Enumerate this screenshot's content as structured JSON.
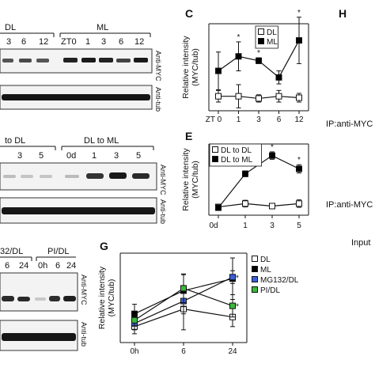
{
  "panel_letters": {
    "c": "C",
    "e": "E",
    "g": "G",
    "h": "H"
  },
  "blot_top": {
    "groups": [
      "DL",
      "ML"
    ],
    "lanes": [
      "3",
      "6",
      "12",
      "ZT0",
      "1",
      "3",
      "6",
      "12"
    ],
    "labels": [
      "Anti-MYC",
      "Anti-tub"
    ]
  },
  "blot_mid": {
    "groups": [
      "to DL",
      "DL to ML"
    ],
    "lanes": [
      "3",
      "5",
      "0d",
      "1",
      "3",
      "5"
    ],
    "labels": [
      "Anti-MYC",
      "Anti-tub"
    ]
  },
  "blot_bottom": {
    "groups": [
      "32/DL",
      "PI/DL"
    ],
    "lanes": [
      "6",
      "24",
      "0h",
      "6",
      "24"
    ],
    "labels": [
      "Anti-MYC",
      "Anti-tub"
    ]
  },
  "right_panel": {
    "labels": [
      "IP:anti-MYC",
      "IP:anti-MYC",
      "Input"
    ]
  },
  "chart_data": [
    {
      "type": "line",
      "panel": "C",
      "ylabel": "Relative intensity (MYC/tub)",
      "categories": [
        "ZT 0",
        "1",
        "3",
        "6",
        "12"
      ],
      "ylim": [
        0,
        6
      ],
      "legend_position": "top-right",
      "series": [
        {
          "name": "DL",
          "marker": "open-square",
          "color": "#000000",
          "values": [
            1.0,
            1.0,
            0.85,
            1.0,
            0.9
          ],
          "errors": [
            0.4,
            0.8,
            0.25,
            0.4,
            0.3
          ],
          "stars": []
        },
        {
          "name": "ML",
          "marker": "filled-square",
          "color": "#000000",
          "values": [
            2.75,
            3.75,
            3.45,
            2.3,
            4.85
          ],
          "errors": [
            1.3,
            1.0,
            0.2,
            0.45,
            1.6
          ],
          "stars": [
            1,
            2,
            4
          ]
        }
      ]
    },
    {
      "type": "line",
      "panel": "E",
      "ylabel": "Relative intensity (MYC/tub)",
      "categories": [
        "0d",
        "1",
        "3",
        "5"
      ],
      "ylim": [
        0,
        8.6
      ],
      "legend_position": "top-left",
      "series": [
        {
          "name": "DL to DL",
          "marker": "open-square",
          "color": "#000000",
          "values": [
            1.0,
            1.4,
            1.1,
            1.4
          ],
          "errors": [
            0.15,
            0.4,
            0.2,
            0.45
          ],
          "stars": []
        },
        {
          "name": "DL to ML",
          "marker": "filled-square",
          "color": "#000000",
          "values": [
            0.9,
            5.0,
            7.2,
            5.6
          ],
          "errors": [
            0.2,
            0.35,
            0.45,
            0.5
          ],
          "stars": [
            1,
            2,
            3
          ]
        }
      ]
    },
    {
      "type": "line",
      "panel": "G",
      "ylabel": "Relative intensity (MYC/tub)",
      "categories": [
        "0h",
        "6",
        "24"
      ],
      "ylim": [
        0,
        5.6
      ],
      "legend_position": "right",
      "series": [
        {
          "name": "DL",
          "marker": "open-square",
          "color": "#000000",
          "values": [
            1.0,
            2.1,
            1.6
          ],
          "errors": [
            0.45,
            1.3,
            0.6
          ],
          "stars": []
        },
        {
          "name": "ML",
          "marker": "filled-square",
          "color": "#000000",
          "values": [
            1.8,
            3.25,
            4.0
          ],
          "errors": [
            0.6,
            1.0,
            1.3
          ],
          "stars": []
        },
        {
          "name": "MG132/DL",
          "marker": "filled-square",
          "color": "#3a5fd9",
          "values": [
            1.2,
            2.6,
            4.1
          ],
          "errors": [
            0.4,
            0.8,
            0.4
          ],
          "stars": [
            2
          ]
        },
        {
          "name": "PI/DL",
          "marker": "filled-square",
          "color": "#3cb83c",
          "values": [
            1.4,
            3.4,
            2.3
          ],
          "errors": [
            0.35,
            0.9,
            0.7
          ],
          "stars": [
            2
          ]
        }
      ]
    }
  ]
}
